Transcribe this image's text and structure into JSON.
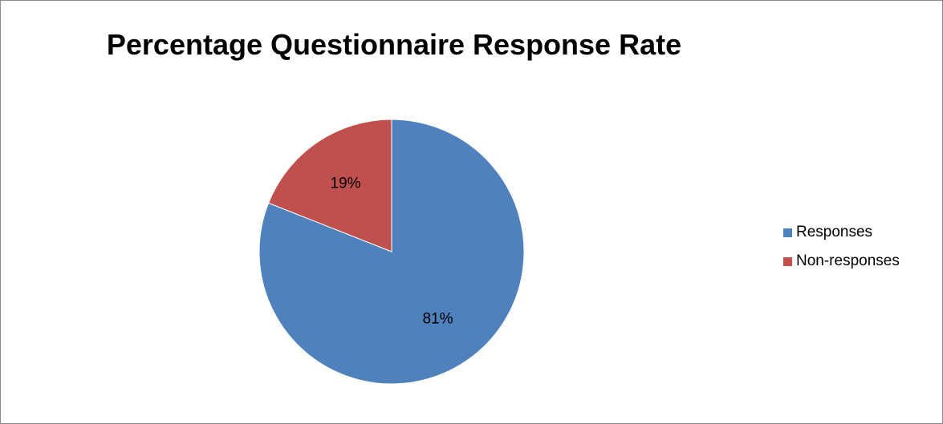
{
  "chart_data": {
    "type": "pie",
    "title": "Percentage Questionnaire Response Rate",
    "categories": [
      "Responses",
      "Non-responses"
    ],
    "values": [
      81,
      19
    ],
    "labels": [
      "81%",
      "19%"
    ],
    "colors": [
      "#4f81bd",
      "#c0504d"
    ],
    "legend_position": "right"
  }
}
